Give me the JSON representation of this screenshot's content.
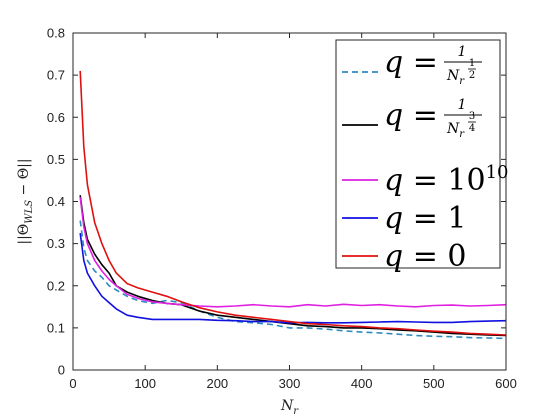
{
  "chart_data": {
    "type": "line",
    "xlabel": "N_r",
    "ylabel": "||Θ_WLS − Θ||",
    "xlim": [
      0,
      600
    ],
    "ylim": [
      0,
      0.8
    ],
    "xticks": [
      "0",
      "100",
      "200",
      "300",
      "400",
      "500",
      "600"
    ],
    "yticks": [
      "0",
      "0.1",
      "0.2",
      "0.3",
      "0.4",
      "0.5",
      "0.6",
      "0.7",
      "0.8"
    ],
    "grid": false,
    "legend_position": "top-right",
    "series": [
      {
        "name": "q = 1/N_r^(1/2)",
        "color": "#2E8BC0",
        "dash": "dashed",
        "x": [
          10,
          15,
          20,
          30,
          40,
          50,
          60,
          75,
          90,
          110,
          130,
          150,
          175,
          200,
          225,
          250,
          275,
          300,
          325,
          350,
          375,
          400,
          425,
          450,
          475,
          500,
          525,
          550,
          575,
          600
        ],
        "y": [
          0.355,
          0.29,
          0.26,
          0.235,
          0.22,
          0.2,
          0.19,
          0.175,
          0.165,
          0.158,
          0.165,
          0.16,
          0.14,
          0.125,
          0.115,
          0.112,
          0.108,
          0.1,
          0.1,
          0.097,
          0.093,
          0.09,
          0.088,
          0.085,
          0.082,
          0.08,
          0.079,
          0.077,
          0.076,
          0.075
        ]
      },
      {
        "name": "q = 1/N_r^(3/4)",
        "color": "#000000",
        "dash": "solid",
        "x": [
          10,
          15,
          20,
          30,
          40,
          50,
          60,
          75,
          90,
          110,
          130,
          150,
          175,
          200,
          225,
          250,
          275,
          300,
          325,
          350,
          375,
          400,
          425,
          450,
          475,
          500,
          525,
          550,
          575,
          600
        ],
        "y": [
          0.415,
          0.35,
          0.31,
          0.275,
          0.25,
          0.23,
          0.2,
          0.185,
          0.175,
          0.165,
          0.158,
          0.155,
          0.14,
          0.13,
          0.125,
          0.12,
          0.115,
          0.11,
          0.105,
          0.103,
          0.1,
          0.1,
          0.098,
          0.095,
          0.093,
          0.09,
          0.087,
          0.085,
          0.083,
          0.082
        ]
      },
      {
        "name": "q = 10^10",
        "color": "#E020E0",
        "dash": "solid",
        "x": [
          10,
          15,
          20,
          30,
          40,
          50,
          60,
          75,
          90,
          110,
          130,
          150,
          175,
          200,
          225,
          250,
          275,
          300,
          325,
          350,
          375,
          400,
          425,
          450,
          475,
          500,
          525,
          550,
          575,
          600
        ],
        "y": [
          0.41,
          0.34,
          0.3,
          0.26,
          0.235,
          0.215,
          0.2,
          0.18,
          0.17,
          0.162,
          0.158,
          0.155,
          0.152,
          0.15,
          0.152,
          0.155,
          0.152,
          0.15,
          0.155,
          0.152,
          0.156,
          0.153,
          0.155,
          0.152,
          0.15,
          0.153,
          0.154,
          0.152,
          0.153,
          0.155
        ]
      },
      {
        "name": "q = 1",
        "color": "#1010E0",
        "dash": "solid",
        "x": [
          10,
          15,
          20,
          30,
          40,
          50,
          60,
          75,
          90,
          110,
          130,
          150,
          175,
          200,
          225,
          250,
          275,
          300,
          325,
          350,
          375,
          400,
          425,
          450,
          475,
          500,
          525,
          550,
          575,
          600
        ],
        "y": [
          0.325,
          0.26,
          0.23,
          0.2,
          0.175,
          0.16,
          0.145,
          0.13,
          0.125,
          0.12,
          0.12,
          0.12,
          0.12,
          0.118,
          0.117,
          0.115,
          0.115,
          0.112,
          0.113,
          0.112,
          0.112,
          0.113,
          0.114,
          0.115,
          0.114,
          0.113,
          0.113,
          0.115,
          0.116,
          0.117
        ]
      },
      {
        "name": "q = 0",
        "color": "#E01010",
        "dash": "solid",
        "x": [
          10,
          15,
          20,
          30,
          40,
          50,
          60,
          75,
          90,
          110,
          130,
          150,
          175,
          200,
          225,
          250,
          275,
          300,
          325,
          350,
          375,
          400,
          425,
          450,
          475,
          500,
          525,
          550,
          575,
          600
        ],
        "y": [
          0.71,
          0.53,
          0.44,
          0.35,
          0.3,
          0.26,
          0.23,
          0.205,
          0.195,
          0.185,
          0.175,
          0.162,
          0.148,
          0.138,
          0.13,
          0.125,
          0.12,
          0.115,
          0.11,
          0.108,
          0.105,
          0.103,
          0.1,
          0.098,
          0.095,
          0.092,
          0.09,
          0.087,
          0.085,
          0.083
        ]
      }
    ]
  }
}
